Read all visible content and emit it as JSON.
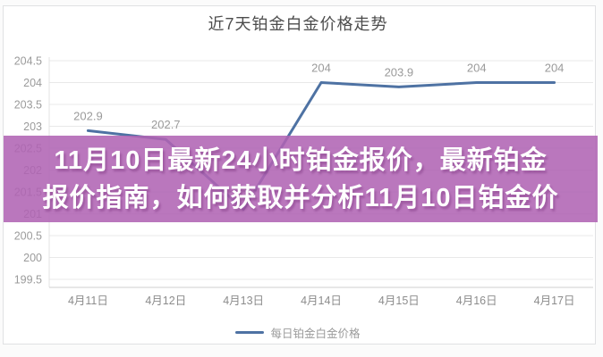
{
  "overlay": {
    "line1": "11月10日最新24小时铂金报价，最新铂金",
    "line2": "报价指南，如何获取并分析11月10日铂金价",
    "background_rgba": "rgba(176,99,179,0.87)",
    "background_hex": "#b063b3",
    "text_color": "#ffffff"
  },
  "chart_data": {
    "type": "line",
    "title": "近7天铂金白金价格走势",
    "categories": [
      "4月11日",
      "4月12日",
      "4月13日",
      "4月14日",
      "4月15日",
      "4月16日",
      "4月17日"
    ],
    "series": [
      {
        "name": "每日铂金白金价格",
        "values": [
          202.9,
          202.7,
          201.1,
          204,
          203.9,
          204,
          204
        ]
      }
    ],
    "visible_point_labels": [
      "202.9",
      "202.7",
      "204",
      "203.9",
      "204",
      "204"
    ],
    "y_ticks": [
      204.5,
      204,
      203.5,
      203,
      202.5,
      202,
      201.5,
      201,
      200.5,
      200,
      199.5
    ],
    "ylim": [
      199.3,
      204.5
    ],
    "xlabel": "",
    "ylabel": "",
    "grid": true,
    "legend_position": "bottom",
    "line_color": "#4e72a3",
    "tick_color": "#9b9b9b",
    "grid_color": "#e9e9e9"
  }
}
